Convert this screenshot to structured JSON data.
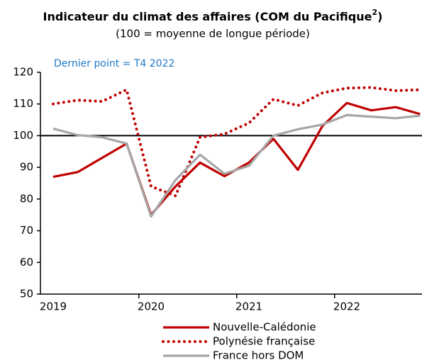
{
  "chart_data": {
    "type": "line",
    "title": [
      "Indicateur du climat des affaires (COM du Pacifique",
      "2",
      ")"
    ],
    "subtitle": "(100 = moyenne de longue période)",
    "annotation": "Dernier point = T4 2022",
    "categories": [
      "2019",
      null,
      null,
      null,
      "2020",
      null,
      null,
      null,
      "2021",
      null,
      null,
      null,
      "2022",
      null,
      null,
      null
    ],
    "series": [
      {
        "name": "Nouvelle-Calédonie",
        "color": "#c00000",
        "style": "solid",
        "values": [
          87,
          88.5,
          93,
          97.5,
          75,
          84,
          91.5,
          87.2,
          91.5,
          99,
          89.2,
          103,
          110.3,
          108,
          109,
          106.8
        ]
      },
      {
        "name": "Polynésie française",
        "color": "#c00000",
        "style": "dotted",
        "values": [
          110,
          111.2,
          110.8,
          114.5,
          84,
          81,
          99.5,
          100.5,
          104,
          111.5,
          109.5,
          113.5,
          115,
          115.2,
          114.2,
          114.5
        ]
      },
      {
        "name": "France hors DOM",
        "color": "#a6a6a6",
        "style": "solid",
        "values": [
          102.2,
          100.2,
          99.5,
          97.5,
          74.5,
          86,
          94,
          88,
          90.5,
          100,
          102,
          103.5,
          106.5,
          106,
          105.5,
          106.3
        ]
      }
    ],
    "ylim": [
      50,
      120
    ],
    "yticks": [
      50,
      60,
      70,
      80,
      90,
      100,
      110,
      120
    ],
    "hline": 100
  }
}
